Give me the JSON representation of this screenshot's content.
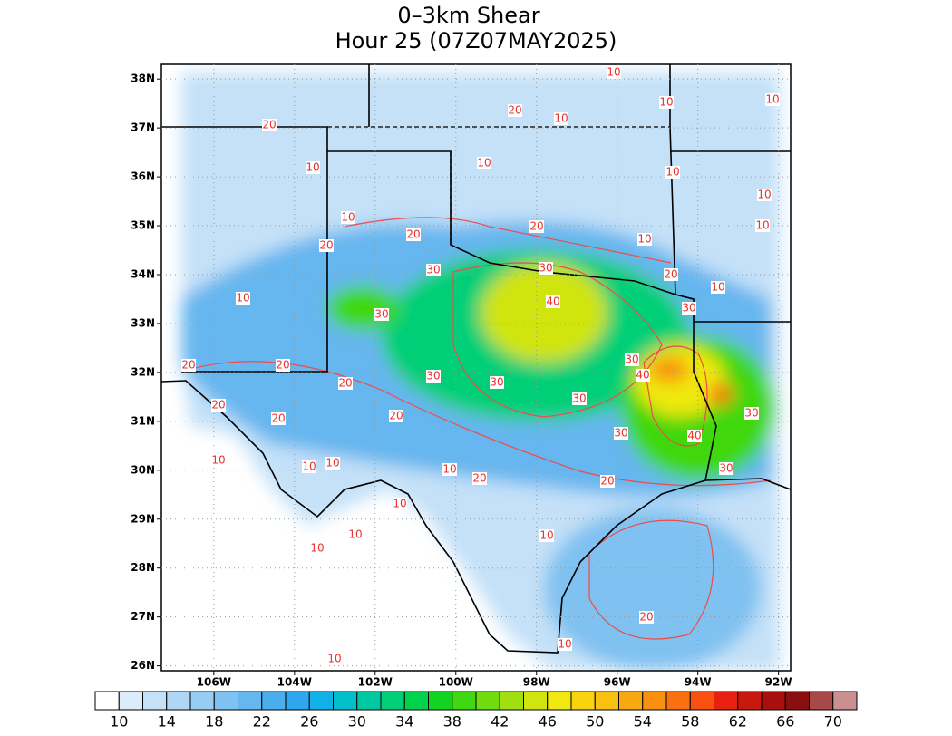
{
  "title": "0–3km Shear",
  "subtitle": "Hour 25 (07Z07MAY2025)",
  "map": {
    "xlim": [
      -107.3,
      -91.7
    ],
    "ylim": [
      25.9,
      38.3
    ],
    "xticks": [
      {
        "value": -106,
        "label": "106W"
      },
      {
        "value": -104,
        "label": "104W"
      },
      {
        "value": -102,
        "label": "102W"
      },
      {
        "value": -100,
        "label": "100W"
      },
      {
        "value": -98,
        "label": "98W"
      },
      {
        "value": -96,
        "label": "96W"
      },
      {
        "value": -94,
        "label": "94W"
      },
      {
        "value": -92,
        "label": "92W"
      }
    ],
    "yticks": [
      {
        "value": 26,
        "label": "26N"
      },
      {
        "value": 27,
        "label": "27N"
      },
      {
        "value": 28,
        "label": "28N"
      },
      {
        "value": 29,
        "label": "29N"
      },
      {
        "value": 30,
        "label": "30N"
      },
      {
        "value": 31,
        "label": "31N"
      },
      {
        "value": 32,
        "label": "32N"
      },
      {
        "value": 33,
        "label": "33N"
      },
      {
        "value": 34,
        "label": "34N"
      },
      {
        "value": 35,
        "label": "35N"
      },
      {
        "value": 36,
        "label": "36N"
      },
      {
        "value": 37,
        "label": "37N"
      },
      {
        "value": 38,
        "label": "38N"
      }
    ],
    "grid": true,
    "contour_labels": [
      "10",
      "20",
      "10",
      "10",
      "10",
      "20",
      "10",
      "10",
      "10",
      "10",
      "10",
      "20",
      "20",
      "10",
      "20",
      "10",
      "30",
      "30",
      "20",
      "10",
      "10",
      "40",
      "30",
      "30",
      "20",
      "20",
      "20",
      "30",
      "30",
      "30",
      "40",
      "20",
      "30",
      "20",
      "20",
      "30",
      "30",
      "40",
      "10",
      "10",
      "10",
      "10",
      "20",
      "20",
      "30",
      "10",
      "10",
      "10",
      "10",
      "20",
      "10",
      "10"
    ]
  },
  "colorbar": {
    "ticks": [
      10,
      14,
      18,
      22,
      26,
      30,
      34,
      38,
      42,
      46,
      50,
      54,
      58,
      62,
      66,
      70
    ],
    "colors": [
      "#ffffff",
      "#dcecfa",
      "#c4e1f8",
      "#afd6f5",
      "#97ccf3",
      "#7fc1f1",
      "#66b6ef",
      "#4badec",
      "#2fa6ed",
      "#12b0e8",
      "#00bfc9",
      "#00c9a2",
      "#00cf77",
      "#00d24c",
      "#10d420",
      "#40d810",
      "#70dc10",
      "#a0e010",
      "#d0e410",
      "#f0e810",
      "#f8d410",
      "#f8c010",
      "#f8a810",
      "#f89010",
      "#f87010",
      "#f85010",
      "#e82010",
      "#c81810",
      "#a81010",
      "#8a1010",
      "#a84848",
      "#c89090"
    ]
  }
}
